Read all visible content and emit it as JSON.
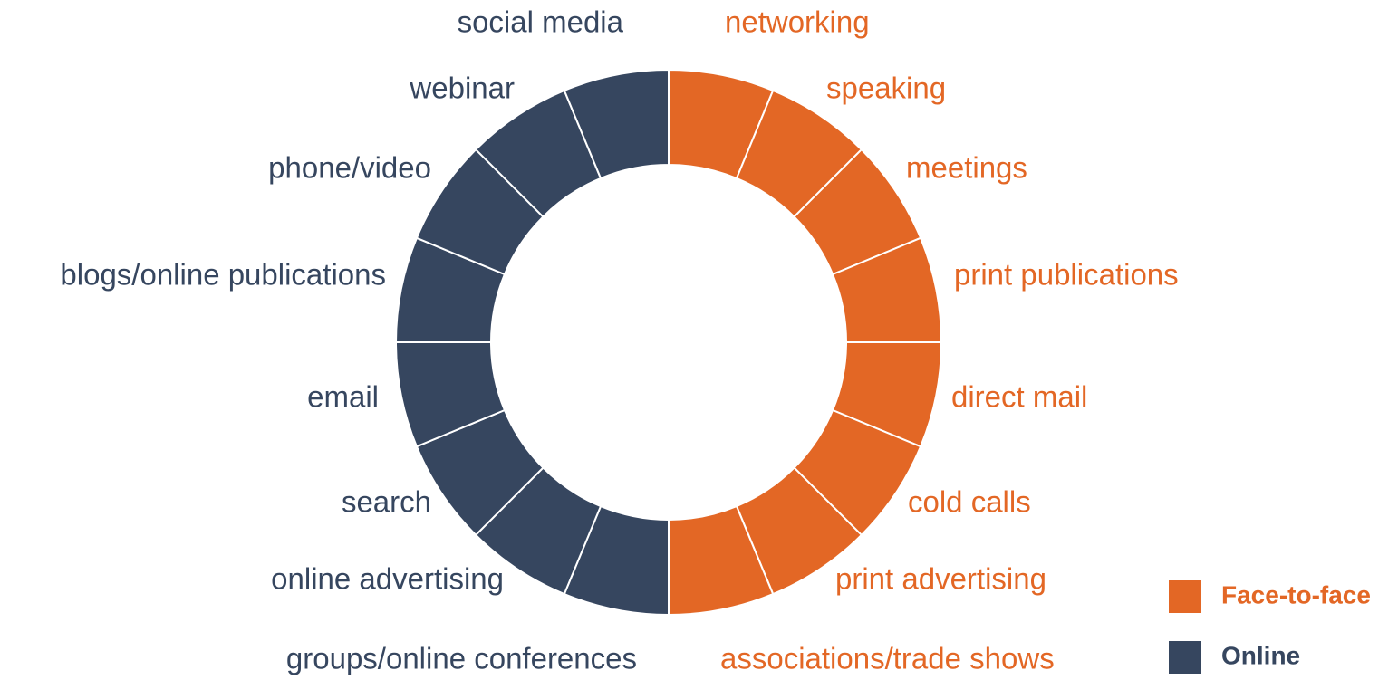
{
  "chart_data": {
    "type": "donut",
    "series": [
      {
        "name": "Face-to-face",
        "color": "#e36725",
        "labels": [
          "networking",
          "speaking",
          "meetings",
          "print publications",
          "direct mail",
          "cold calls",
          "print advertising",
          "associations/trade shows"
        ],
        "values": [
          1,
          1,
          1,
          1,
          1,
          1,
          1,
          1
        ]
      },
      {
        "name": "Online",
        "color": "#36465f",
        "labels": [
          "groups/online conferences",
          "online advertising",
          "search",
          "email",
          "blogs/online publications",
          "phone/video",
          "webinar",
          "social media"
        ],
        "values": [
          1,
          1,
          1,
          1,
          1,
          1,
          1,
          1
        ]
      }
    ]
  }
}
